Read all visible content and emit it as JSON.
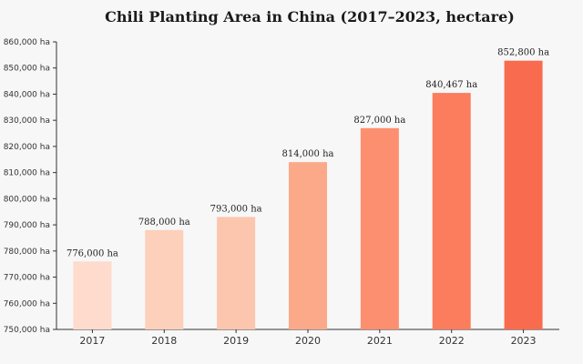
{
  "chart_data": {
    "type": "bar",
    "title": "Chili Planting Area in China (2017–2023, hectare)",
    "xlabel": "",
    "ylabel": "",
    "categories": [
      "2017",
      "2018",
      "2019",
      "2020",
      "2021",
      "2022",
      "2023"
    ],
    "values": [
      776000,
      788000,
      793000,
      814000,
      827000,
      840467,
      852800
    ],
    "data_labels": [
      "776,000 ha",
      "788,000 ha",
      "793,000 ha",
      "814,000 ha",
      "827,000 ha",
      "840,467 ha",
      "852,800 ha"
    ],
    "ylim": [
      750000,
      860000
    ],
    "yticks": [
      750000,
      760000,
      770000,
      780000,
      790000,
      800000,
      810000,
      820000,
      830000,
      840000,
      850000,
      860000
    ],
    "ytick_labels": [
      "750,000 ha",
      "760,000 ha",
      "770,000 ha",
      "780,000 ha",
      "790,000 ha",
      "800,000 ha",
      "810,000 ha",
      "820,000 ha",
      "830,000 ha",
      "840,000 ha",
      "850,000 ha",
      "860,000 ha"
    ],
    "grid": false,
    "colors": [
      "#fedbcc",
      "#fdd0bc",
      "#fcc5ae",
      "#fca98a",
      "#fc8f6f",
      "#fb7d5d",
      "#f96b4e"
    ]
  }
}
